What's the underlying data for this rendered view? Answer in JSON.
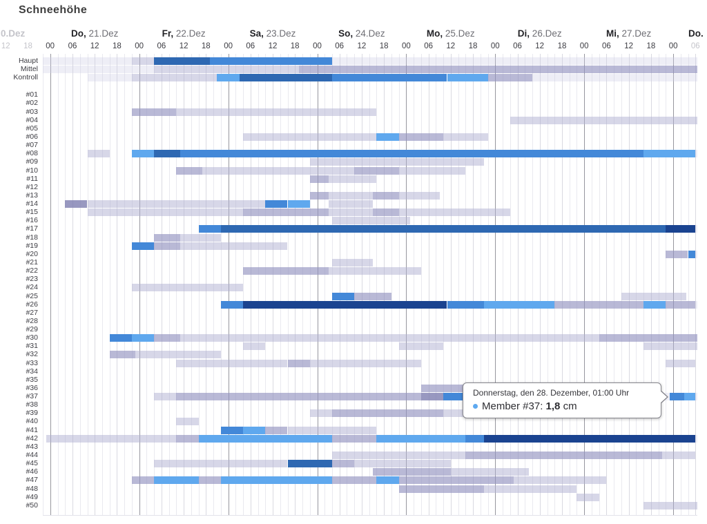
{
  "title": "Schneehöhe",
  "tooltip": {
    "header": "Donnerstag, den 28. Dezember, 01:00 Uhr",
    "series_label": "Member #37:",
    "value": "1,8",
    "unit": "cm",
    "marker_color": "#5ea9f0"
  },
  "palette": {
    "p": "rgba(205,205,228,0.35)",
    "l": "rgba(176,176,210,0.5)",
    "m": "rgba(148,148,192,0.65)",
    "d": "rgba(126,126,176,0.8)",
    "B1": "#5fa8ee",
    "B2": "#4388d8",
    "B3": "#2e68b2",
    "B4": "#1a4390"
  },
  "chart_data": {
    "type": "heatmap",
    "title": "Schneehöhe",
    "unit": "cm",
    "hour_unit": "hours since Do 21.Dez 00:00",
    "axis": {
      "left_partial_day": "0.Dez",
      "left_hours": [
        {
          "label": "12",
          "h": -12
        },
        {
          "label": "18",
          "h": -6
        }
      ],
      "days": [
        {
          "name": "Do",
          "date": "21.Dez"
        },
        {
          "name": "Fr",
          "date": "22.Dez"
        },
        {
          "name": "Sa",
          "date": "23.Dez"
        },
        {
          "name": "So",
          "date": "24.Dez"
        },
        {
          "name": "Mo",
          "date": "25.Dez"
        },
        {
          "name": "Di",
          "date": "26.Dez"
        },
        {
          "name": "Mi",
          "date": "27.Dez"
        }
      ],
      "right_partial_day": "Do.",
      "hour_labels": [
        "00",
        "06",
        "12",
        "18"
      ],
      "trailing_hours": [
        {
          "label": "00",
          "h": 168,
          "faded": false
        },
        {
          "label": "06",
          "h": 174,
          "faded": true
        }
      ]
    },
    "rows": [
      {
        "label": "Haupt",
        "segments": [
          [
            -2,
            22,
            "p"
          ],
          [
            22,
            28,
            "l"
          ],
          [
            28,
            43,
            "B3"
          ],
          [
            43,
            76,
            "B2"
          ],
          [
            76,
            174.5,
            "p"
          ]
        ]
      },
      {
        "label": "Mittel",
        "segments": [
          [
            -2,
            28,
            "p"
          ],
          [
            28,
            67,
            "l"
          ],
          [
            67,
            174.5,
            "m"
          ]
        ]
      },
      {
        "label": "Kontroll",
        "segments": [
          [
            10,
            22,
            "p"
          ],
          [
            22,
            45,
            "l"
          ],
          [
            45,
            51,
            "B1"
          ],
          [
            51,
            76,
            "B3"
          ],
          [
            76,
            107,
            "B2"
          ],
          [
            107,
            118,
            "B1"
          ],
          [
            118,
            130,
            "m"
          ],
          [
            130,
            174.5,
            "p"
          ]
        ]
      },
      {
        "label": "#01",
        "segments": []
      },
      {
        "label": "#02",
        "segments": []
      },
      {
        "label": "#03",
        "segments": [
          [
            22,
            34,
            "m"
          ],
          [
            34,
            88,
            "l"
          ]
        ]
      },
      {
        "label": "#04",
        "segments": [
          [
            124,
            174.5,
            "l"
          ]
        ]
      },
      {
        "label": "#05",
        "segments": []
      },
      {
        "label": "#06",
        "segments": [
          [
            52,
            88,
            "l"
          ],
          [
            88,
            94,
            "B1"
          ],
          [
            94,
            106,
            "m"
          ],
          [
            106,
            118,
            "l"
          ]
        ]
      },
      {
        "label": "#07",
        "segments": []
      },
      {
        "label": "#08",
        "segments": [
          [
            10,
            16,
            "l"
          ],
          [
            22,
            28,
            "B1"
          ],
          [
            28,
            35,
            "B3"
          ],
          [
            35,
            160,
            "B2"
          ],
          [
            160,
            174,
            "B1"
          ],
          [
            174,
            174.5,
            "p"
          ]
        ]
      },
      {
        "label": "#09",
        "segments": [
          [
            70,
            117,
            "l"
          ]
        ]
      },
      {
        "label": "#10",
        "segments": [
          [
            34,
            41,
            "m"
          ],
          [
            41,
            82,
            "l"
          ],
          [
            82,
            94,
            "m"
          ],
          [
            94,
            112,
            "l"
          ]
        ]
      },
      {
        "label": "#11",
        "segments": [
          [
            70,
            75,
            "m"
          ],
          [
            75,
            88,
            "l"
          ]
        ]
      },
      {
        "label": "#12",
        "segments": []
      },
      {
        "label": "#13",
        "segments": [
          [
            70,
            75,
            "m"
          ],
          [
            75,
            87,
            "l"
          ],
          [
            87,
            94,
            "m"
          ],
          [
            94,
            105,
            "l"
          ]
        ]
      },
      {
        "label": "#14",
        "segments": [
          [
            4,
            10,
            "d"
          ],
          [
            10,
            58,
            "l"
          ],
          [
            58,
            64,
            "B2"
          ],
          [
            64,
            70,
            "B1"
          ],
          [
            75,
            87,
            "l"
          ]
        ]
      },
      {
        "label": "#15",
        "segments": [
          [
            10,
            52,
            "l"
          ],
          [
            52,
            75,
            "m"
          ],
          [
            75,
            87,
            "l"
          ],
          [
            87,
            94,
            "m"
          ],
          [
            94,
            124,
            "l"
          ]
        ]
      },
      {
        "label": "#16",
        "segments": [
          [
            76,
            97,
            "l"
          ]
        ]
      },
      {
        "label": "#17",
        "segments": [
          [
            40,
            46,
            "B2"
          ],
          [
            46,
            166,
            "B3"
          ],
          [
            166,
            174,
            "B4"
          ],
          [
            174,
            174.5,
            "p"
          ]
        ]
      },
      {
        "label": "#18",
        "segments": [
          [
            28,
            35,
            "m"
          ],
          [
            35,
            46,
            "l"
          ]
        ]
      },
      {
        "label": "#19",
        "segments": [
          [
            22,
            28,
            "B2"
          ],
          [
            28,
            35,
            "m"
          ],
          [
            35,
            64,
            "l"
          ]
        ]
      },
      {
        "label": "#20",
        "segments": [
          [
            166,
            172,
            "m"
          ],
          [
            172,
            174,
            "B2"
          ],
          [
            174,
            174.5,
            "p"
          ]
        ]
      },
      {
        "label": "#21",
        "segments": [
          [
            76,
            87,
            "l"
          ]
        ]
      },
      {
        "label": "#22",
        "segments": [
          [
            52,
            75,
            "m"
          ],
          [
            75,
            100,
            "l"
          ]
        ]
      },
      {
        "label": "#23",
        "segments": []
      },
      {
        "label": "#24",
        "segments": [
          [
            22,
            52,
            "l"
          ]
        ]
      },
      {
        "label": "#25",
        "segments": [
          [
            76,
            82,
            "B2"
          ],
          [
            82,
            92,
            "m"
          ],
          [
            154,
            171.5,
            "l"
          ]
        ]
      },
      {
        "label": "#26",
        "segments": [
          [
            46,
            52,
            "B2"
          ],
          [
            52,
            107,
            "B4"
          ],
          [
            107,
            117,
            "B2"
          ],
          [
            117,
            136,
            "B1"
          ],
          [
            136,
            160,
            "m"
          ],
          [
            160,
            166,
            "B1"
          ],
          [
            166,
            174,
            "m"
          ],
          [
            174,
            174.5,
            "p"
          ]
        ]
      },
      {
        "label": "#27",
        "segments": []
      },
      {
        "label": "#28",
        "segments": []
      },
      {
        "label": "#29",
        "segments": []
      },
      {
        "label": "#30",
        "segments": [
          [
            16,
            22,
            "B2"
          ],
          [
            22,
            28,
            "B1"
          ],
          [
            28,
            35,
            "m"
          ],
          [
            35,
            148,
            "l"
          ],
          [
            148,
            174.5,
            "m"
          ]
        ]
      },
      {
        "label": "#31",
        "segments": [
          [
            52,
            58,
            "l"
          ],
          [
            94,
            106,
            "l"
          ],
          [
            160,
            174.5,
            "l"
          ]
        ]
      },
      {
        "label": "#32",
        "segments": [
          [
            16,
            23,
            "m"
          ],
          [
            23,
            46,
            "l"
          ]
        ]
      },
      {
        "label": "#33",
        "segments": [
          [
            34,
            64,
            "l"
          ],
          [
            64,
            70,
            "m"
          ],
          [
            70,
            100,
            "l"
          ],
          [
            166,
            174,
            "l"
          ]
        ]
      },
      {
        "label": "#34",
        "segments": []
      },
      {
        "label": "#35",
        "segments": []
      },
      {
        "label": "#36",
        "segments": [
          [
            100,
            112,
            "m"
          ]
        ]
      },
      {
        "label": "#37",
        "segments": [
          [
            28,
            34,
            "l"
          ],
          [
            34,
            100,
            "m"
          ],
          [
            100,
            106,
            "d"
          ],
          [
            106,
            112,
            "B2"
          ],
          [
            165,
            167,
            "p"
          ],
          [
            167,
            171,
            "B2"
          ],
          [
            171,
            174,
            "B1"
          ],
          [
            174,
            174.5,
            "p"
          ]
        ]
      },
      {
        "label": "#38",
        "segments": []
      },
      {
        "label": "#39",
        "segments": [
          [
            70,
            76,
            "l"
          ],
          [
            76,
            106,
            "m"
          ],
          [
            106,
            117,
            "l"
          ]
        ]
      },
      {
        "label": "#40",
        "segments": [
          [
            34,
            40,
            "l"
          ]
        ]
      },
      {
        "label": "#41",
        "segments": [
          [
            46,
            52,
            "B2"
          ],
          [
            52,
            58,
            "B1"
          ],
          [
            58,
            64,
            "m"
          ],
          [
            64,
            88,
            "l"
          ]
        ]
      },
      {
        "label": "#42",
        "segments": [
          [
            -1,
            34,
            "l"
          ],
          [
            34,
            40,
            "m"
          ],
          [
            40,
            76,
            "B1"
          ],
          [
            76,
            88,
            "m"
          ],
          [
            88,
            112,
            "B1"
          ],
          [
            112,
            117,
            "B2"
          ],
          [
            117,
            174,
            "B4"
          ],
          [
            174,
            174.5,
            "p"
          ]
        ]
      },
      {
        "label": "#43",
        "segments": []
      },
      {
        "label": "#44",
        "segments": [
          [
            76,
            112,
            "l"
          ],
          [
            112,
            165,
            "m"
          ],
          [
            165,
            174,
            "l"
          ]
        ]
      },
      {
        "label": "#45",
        "segments": [
          [
            28,
            64,
            "l"
          ],
          [
            64,
            76,
            "B3"
          ],
          [
            76,
            82,
            "m"
          ],
          [
            82,
            108,
            "l"
          ]
        ]
      },
      {
        "label": "#46",
        "segments": [
          [
            87,
            108,
            "m"
          ],
          [
            108,
            129,
            "l"
          ]
        ]
      },
      {
        "label": "#47",
        "segments": [
          [
            22,
            28,
            "m"
          ],
          [
            28,
            40,
            "B1"
          ],
          [
            40,
            46,
            "m"
          ],
          [
            46,
            76,
            "B1"
          ],
          [
            76,
            88,
            "m"
          ],
          [
            88,
            94,
            "B1"
          ],
          [
            94,
            125,
            "m"
          ],
          [
            125,
            150,
            "l"
          ]
        ]
      },
      {
        "label": "#48",
        "segments": [
          [
            94,
            117,
            "m"
          ],
          [
            117,
            142,
            "l"
          ]
        ]
      },
      {
        "label": "#49",
        "segments": [
          [
            142,
            148,
            "l"
          ]
        ]
      },
      {
        "label": "#50",
        "segments": [
          [
            160,
            174.5,
            "l"
          ]
        ]
      }
    ]
  }
}
